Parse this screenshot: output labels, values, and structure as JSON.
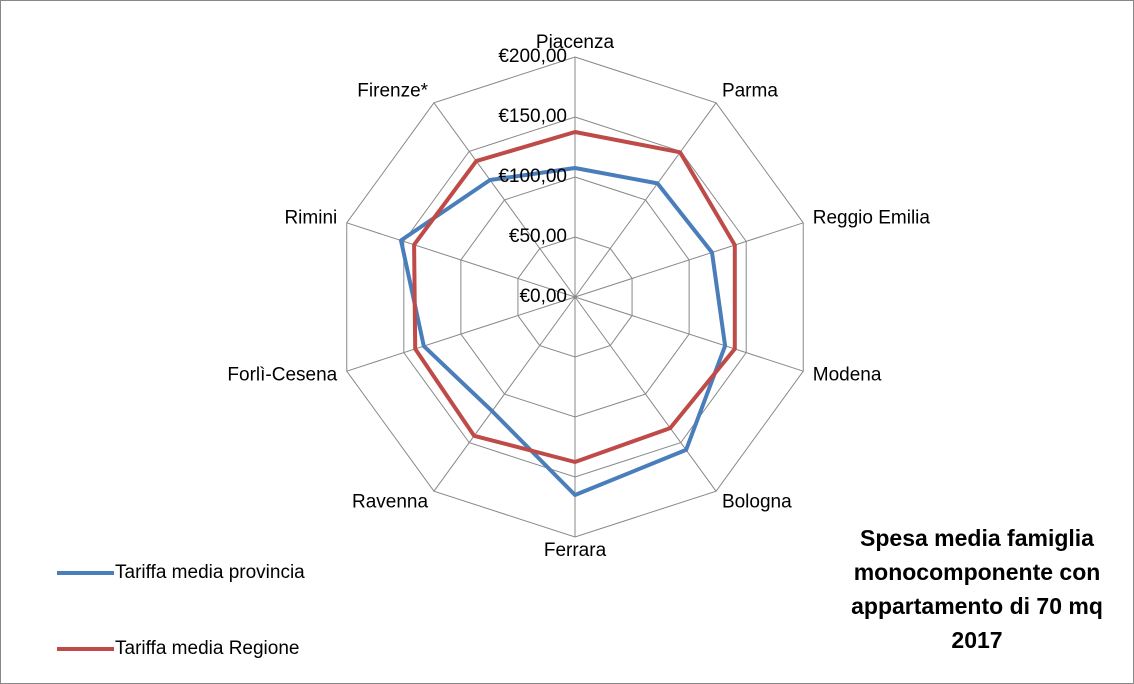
{
  "chart_data": {
    "type": "radar",
    "title": "Spesa media famiglia monocomponente con appartamento di 70 mq 2017",
    "categories": [
      "Piacenza",
      "Parma",
      "Reggio Emilia",
      "Modena",
      "Bologna",
      "Ferrara",
      "Ravenna",
      "Forlì-Cesena",
      "Rimini",
      "Firenze*"
    ],
    "series": [
      {
        "name": "Tariffa media provincia",
        "color": "#4a7ebb",
        "values": [
          107.5,
          117,
          120,
          131.5,
          157.5,
          165,
          117.5,
          132.5,
          152.5,
          120.5
        ]
      },
      {
        "name": "Tariffa media Regione",
        "color": "#be4b48",
        "values": [
          137.5,
          149,
          140,
          140,
          135,
          137.5,
          143,
          140,
          141,
          140
        ]
      }
    ],
    "ylim": [
      0,
      200
    ],
    "yticks": [
      {
        "value": 0,
        "label": "€0,00"
      },
      {
        "value": 50,
        "label": "€50,00"
      },
      {
        "value": 100,
        "label": "€100,00"
      },
      {
        "value": 150,
        "label": "€150,00"
      },
      {
        "value": 200,
        "label": "€200,00"
      }
    ],
    "grid": true,
    "legend": "bottom-left"
  }
}
